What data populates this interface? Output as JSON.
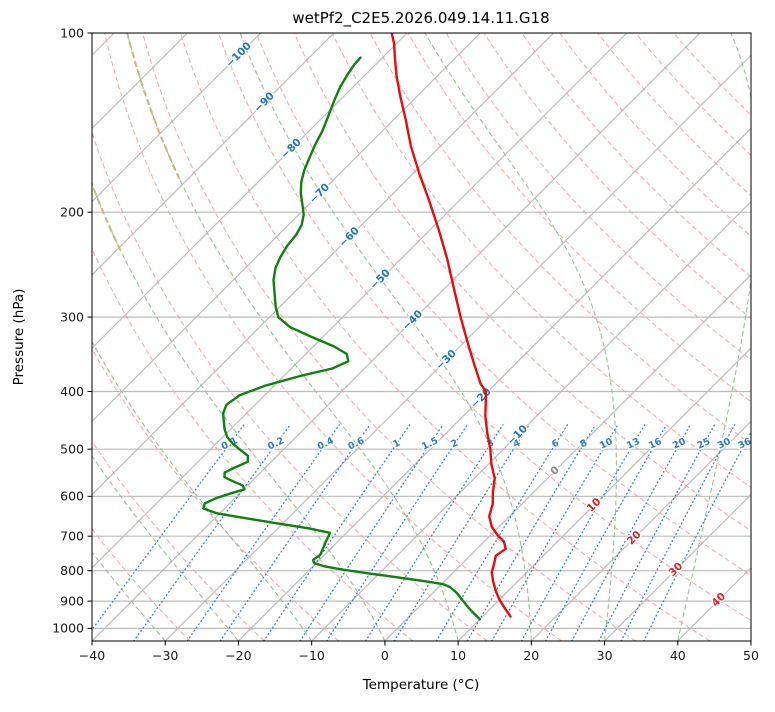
{
  "title": "wetPf2_C2E5.2026.049.14.11.G18",
  "axes": {
    "x_label": "Temperature (°C)",
    "y_label": "Pressure (hPa)",
    "x_tick_labels": [
      "−40",
      "−30",
      "−20",
      "−10",
      "0",
      "10",
      "20",
      "30",
      "40",
      "50"
    ],
    "y_tick_labels": [
      "100",
      "200",
      "300",
      "400",
      "500",
      "600",
      "700",
      "800",
      "900",
      "1000"
    ]
  },
  "chart_data": {
    "type": "line",
    "variant": "skew-T log-P atmospheric sounding",
    "title": "wetPf2_C2E5.2026.049.14.11.G18",
    "xlabel": "Temperature (°C)",
    "ylabel": "Pressure (hPa)",
    "xlim": [
      -40,
      50
    ],
    "ylim": [
      1050,
      100
    ],
    "skew": "45deg",
    "grid": true,
    "legend": "none",
    "x_ticks": [
      -40,
      -30,
      -20,
      -10,
      0,
      10,
      20,
      30,
      40,
      50
    ],
    "y_ticks": [
      100,
      200,
      300,
      400,
      500,
      600,
      700,
      800,
      900,
      1000
    ],
    "series": [
      {
        "name": "temperature",
        "color": "#e01010",
        "points": [
          [
            955,
            13.8
          ],
          [
            925,
            11.9
          ],
          [
            895,
            10.0
          ],
          [
            865,
            8.3
          ],
          [
            835,
            6.7
          ],
          [
            805,
            5.2
          ],
          [
            780,
            4.4
          ],
          [
            755,
            3.5
          ],
          [
            735,
            3.9
          ],
          [
            715,
            2.7
          ],
          [
            698,
            1.0
          ],
          [
            675,
            -1.0
          ],
          [
            648,
            -2.8
          ],
          [
            618,
            -4.0
          ],
          [
            590,
            -5.6
          ],
          [
            560,
            -7.2
          ],
          [
            530,
            -9.6
          ],
          [
            500,
            -11.8
          ],
          [
            470,
            -14.4
          ],
          [
            440,
            -17.0
          ],
          [
            415,
            -19.0
          ],
          [
            400,
            -20.3
          ],
          [
            388,
            -22.1
          ],
          [
            360,
            -25.6
          ],
          [
            330,
            -29.6
          ],
          [
            300,
            -33.9
          ],
          [
            270,
            -38.5
          ],
          [
            240,
            -43.6
          ],
          [
            215,
            -48.6
          ],
          [
            192,
            -53.9
          ],
          [
            172,
            -59.2
          ],
          [
            155,
            -64.0
          ],
          [
            140,
            -68.3
          ],
          [
            128,
            -72.2
          ],
          [
            118,
            -75.6
          ],
          [
            110,
            -78.3
          ],
          [
            104,
            -80.4
          ],
          [
            100,
            -82.1
          ]
        ]
      },
      {
        "name": "dewpoint",
        "color": "#108010",
        "points": [
          [
            965,
            10.0
          ],
          [
            940,
            8.1
          ],
          [
            915,
            6.3
          ],
          [
            892,
            4.7
          ],
          [
            870,
            3.1
          ],
          [
            852,
            1.5
          ],
          [
            843,
            0.2
          ],
          [
            836,
            -1.8
          ],
          [
            827,
            -4.8
          ],
          [
            817,
            -8.4
          ],
          [
            807,
            -12.0
          ],
          [
            797,
            -15.4
          ],
          [
            787,
            -18.4
          ],
          [
            777,
            -20.3
          ],
          [
            767,
            -20.9
          ],
          [
            753,
            -20.6
          ],
          [
            741,
            -20.9
          ],
          [
            727,
            -21.3
          ],
          [
            713,
            -21.7
          ],
          [
            700,
            -22.0
          ],
          [
            691,
            -22.3
          ],
          [
            679,
            -25.8
          ],
          [
            666,
            -30.8
          ],
          [
            653,
            -35.8
          ],
          [
            641,
            -40.3
          ],
          [
            629,
            -42.9
          ],
          [
            617,
            -43.4
          ],
          [
            605,
            -42.6
          ],
          [
            593,
            -41.2
          ],
          [
            584,
            -39.9
          ],
          [
            575,
            -40.7
          ],
          [
            567,
            -42.4
          ],
          [
            557,
            -44.3
          ],
          [
            547,
            -44.9
          ],
          [
            537,
            -44.2
          ],
          [
            525,
            -43.2
          ],
          [
            513,
            -44.0
          ],
          [
            501,
            -45.9
          ],
          [
            489,
            -47.8
          ],
          [
            477,
            -49.4
          ],
          [
            463,
            -50.8
          ],
          [
            449,
            -52.0
          ],
          [
            435,
            -53.2
          ],
          [
            421,
            -53.9
          ],
          [
            406,
            -53.4
          ],
          [
            391,
            -51.2
          ],
          [
            377,
            -47.8
          ],
          [
            366,
            -44.4
          ],
          [
            356,
            -43.2
          ],
          [
            346,
            -44.4
          ],
          [
            336,
            -47.2
          ],
          [
            324,
            -51.5
          ],
          [
            312,
            -55.8
          ],
          [
            300,
            -58.8
          ],
          [
            288,
            -60.6
          ],
          [
            274,
            -62.5
          ],
          [
            260,
            -64.5
          ],
          [
            248,
            -65.9
          ],
          [
            238,
            -66.7
          ],
          [
            228,
            -67.3
          ],
          [
            218,
            -67.6
          ],
          [
            210,
            -68.2
          ],
          [
            202,
            -69.3
          ],
          [
            194,
            -70.9
          ],
          [
            186,
            -72.6
          ],
          [
            178,
            -74.1
          ],
          [
            170,
            -75.3
          ],
          [
            162,
            -76.3
          ],
          [
            154,
            -77.3
          ],
          [
            146,
            -78.2
          ],
          [
            138,
            -79.4
          ],
          [
            130,
            -80.7
          ],
          [
            123,
            -81.8
          ],
          [
            117,
            -82.5
          ],
          [
            113,
            -82.9
          ],
          [
            110,
            -83.0
          ]
        ]
      }
    ],
    "background": {
      "grid_color": "#bcbcbc",
      "isotherms": {
        "start": -130,
        "end": 60,
        "step": 10,
        "color": "#bcbcbc"
      },
      "isotherm_labels": {
        "values": [
          -100,
          -90,
          -80,
          -70,
          -60,
          -50,
          -40,
          -30,
          -20,
          -10,
          0,
          10,
          20,
          30,
          40
        ],
        "neg_color": "#1f77b4",
        "zero_color": "#8a8a8a",
        "pos_color": "#d62728"
      },
      "dry_adiabats": {
        "start": -30,
        "end": 170,
        "step": 10,
        "color": "#ef9f9f"
      },
      "moist_adiabats": {
        "start": -60,
        "end": 50,
        "step": 10,
        "color": "#8cbc8c",
        "cold_color": "#c9b178"
      },
      "mixing_ratios": {
        "values": [
          0.1,
          0.2,
          0.4,
          0.6,
          1,
          1.5,
          2,
          3,
          4,
          6,
          8,
          10,
          13,
          16,
          20,
          25,
          30,
          36
        ],
        "color": "#2e7ebc",
        "label_pressure": 490,
        "top_pressure": 455
      }
    }
  }
}
